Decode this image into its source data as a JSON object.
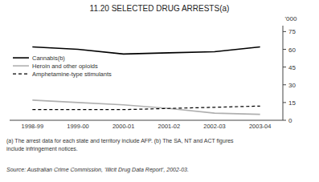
{
  "chart_data": {
    "type": "line",
    "title": "11.20   SELECTED DRUG ARRESTS(a)",
    "categories": [
      "1998-99",
      "1999-00",
      "2000-01",
      "2001-02",
      "2002-03",
      "2003-04"
    ],
    "series": [
      {
        "name": "Cannabis(b)",
        "color": "#000000",
        "line_style": "solid",
        "values": [
          62,
          60,
          56,
          57,
          58,
          62
        ]
      },
      {
        "name": "Heroin and other opioids",
        "color": "#b0b0b0",
        "line_style": "solid",
        "values": [
          17,
          15,
          13,
          10,
          6,
          5
        ]
      },
      {
        "name": "Amphetamine-type stimulants",
        "color": "#000000",
        "line_style": "dashed",
        "values": [
          9,
          9,
          9,
          10,
          11,
          12
        ]
      }
    ],
    "ylabel": "'000",
    "ylim": [
      0,
      80
    ],
    "yticks": [
      0,
      15,
      30,
      45,
      60,
      75
    ],
    "grid": false,
    "legend": "upper left",
    "footnotes": [
      "(a) The arrest data for each state and territory include AFP. (b) The SA, NT and ACT figures",
      "include infringement notices."
    ],
    "source": "Source: Australian Crime Commission, ’Illicit Drug Data Report’, 2002-03."
  }
}
